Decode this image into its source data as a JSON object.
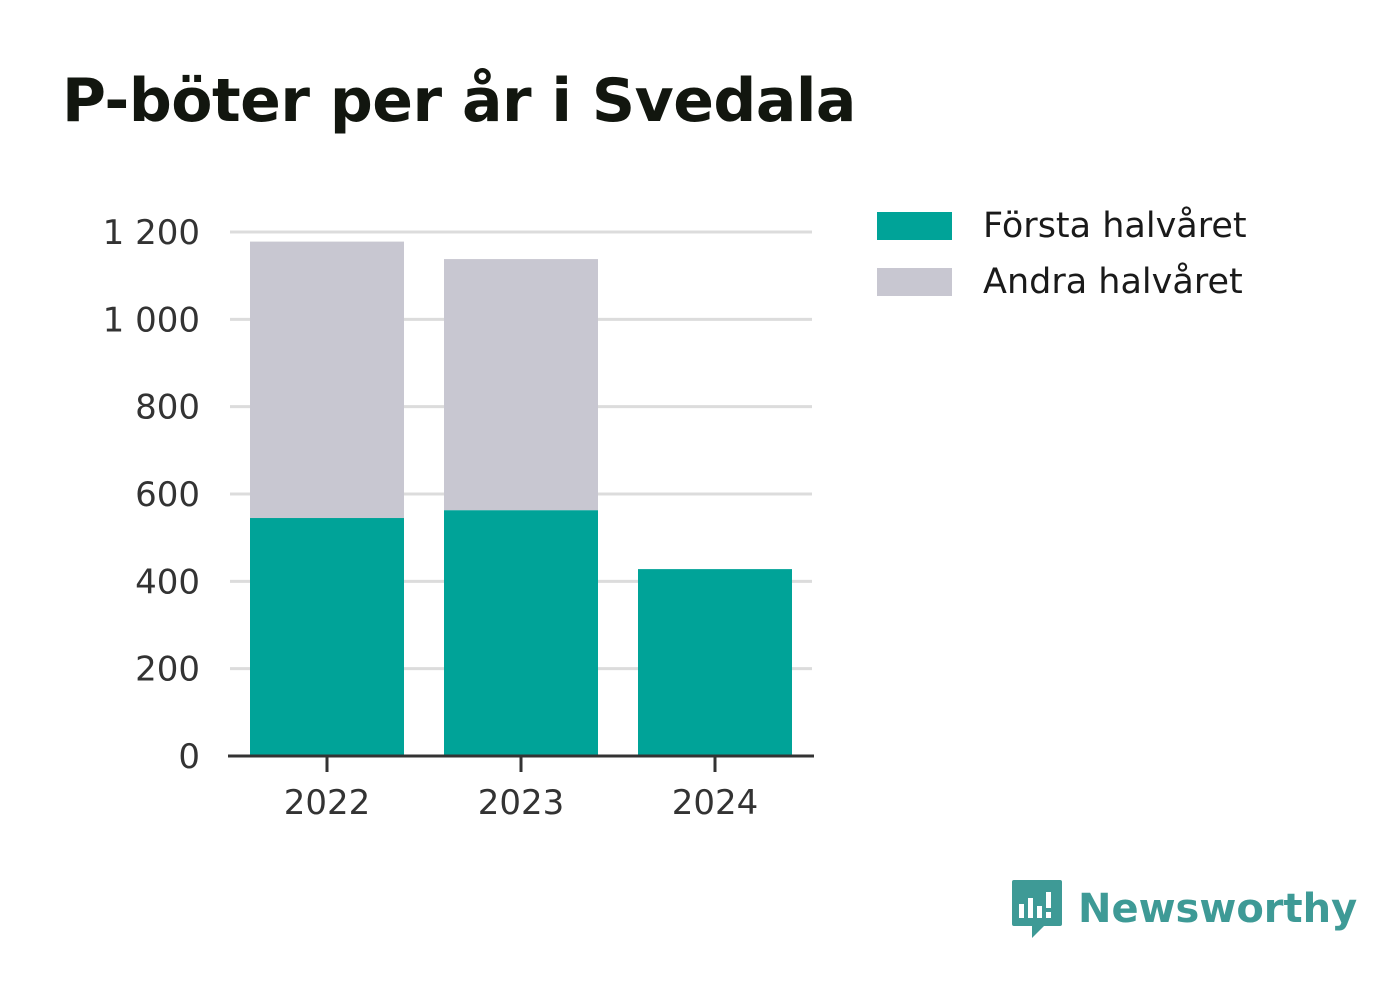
{
  "chart_data": {
    "type": "bar",
    "stacked": true,
    "title": "P-böter per år i Svedala",
    "categories": [
      "2022",
      "2023",
      "2024"
    ],
    "series": [
      {
        "name": "Första halvåret",
        "color": "#00a398",
        "values": [
          545,
          563,
          428
        ]
      },
      {
        "name": "Andra halvåret",
        "color": "#c8c7d1",
        "values": [
          633,
          575,
          0
        ]
      }
    ],
    "yticks": [
      "0",
      "200",
      "400",
      "600",
      "800",
      "1 000",
      "1 200"
    ],
    "ylim": [
      0,
      1200
    ],
    "grid": true,
    "legend_position": "top-right"
  },
  "legend": {
    "items": [
      {
        "label": "Första halvåret",
        "color": "#00a398"
      },
      {
        "label": "Andra halvåret",
        "color": "#c8c7d1"
      }
    ]
  },
  "brand": {
    "name": "Newsworthy",
    "icon": "newsworthy-logo-icon",
    "color": "#3e9a96"
  }
}
